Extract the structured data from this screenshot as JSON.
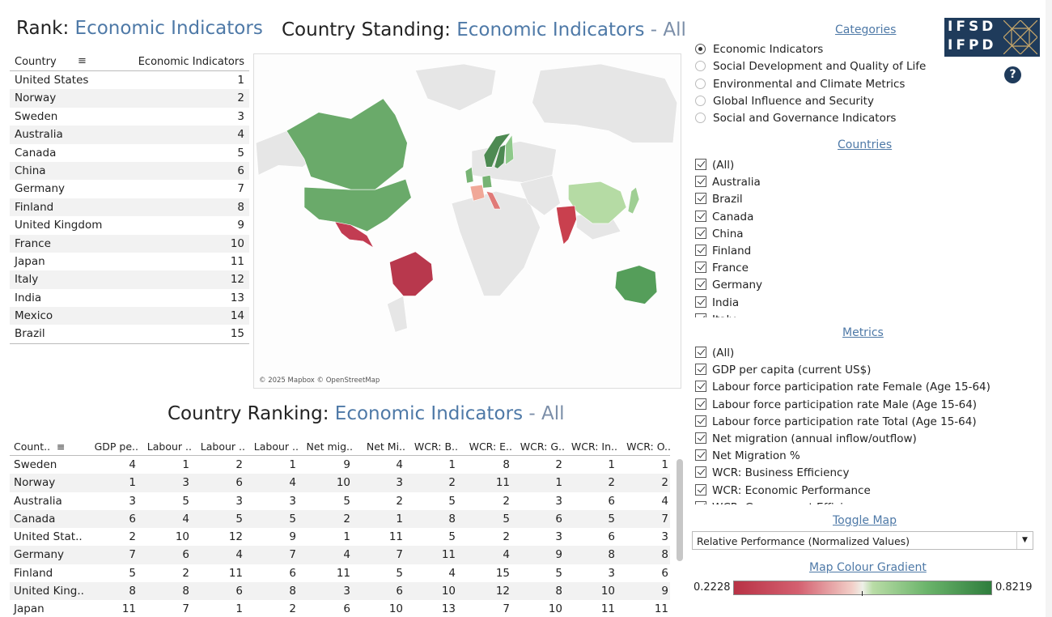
{
  "rank": {
    "title_prefix": "Rank: ",
    "title_category": "Economic Indicators",
    "col_country": "Country",
    "col_value": "Economic Indicators",
    "rows": [
      {
        "country": "United States",
        "rank": "1"
      },
      {
        "country": "Norway",
        "rank": "2"
      },
      {
        "country": "Sweden",
        "rank": "3"
      },
      {
        "country": "Australia",
        "rank": "4"
      },
      {
        "country": "Canada",
        "rank": "5"
      },
      {
        "country": "China",
        "rank": "6"
      },
      {
        "country": "Germany",
        "rank": "7"
      },
      {
        "country": "Finland",
        "rank": "8"
      },
      {
        "country": "United Kingdom",
        "rank": "9"
      },
      {
        "country": "France",
        "rank": "10"
      },
      {
        "country": "Japan",
        "rank": "11"
      },
      {
        "country": "Italy",
        "rank": "12"
      },
      {
        "country": "India",
        "rank": "13"
      },
      {
        "country": "Mexico",
        "rank": "14"
      },
      {
        "country": "Brazil",
        "rank": "15"
      }
    ]
  },
  "standing": {
    "title_prefix": "Country Standing: ",
    "title_category": "Economic Indicators",
    "title_suffix": " - All",
    "map_credit": "© 2025 Mapbox © OpenStreetMap",
    "land_color": "#e6e6e6",
    "country_colors": {
      "Canada": "#6aaa6a",
      "United States": "#6aaa6a",
      "Mexico": "#c23c52",
      "Brazil": "#b8384d",
      "Norway": "#4d8a52",
      "Sweden": "#4d8a52",
      "Finland": "#8ec98a",
      "United Kingdom": "#77b374",
      "France": "#f0a898",
      "Germany": "#77b374",
      "Italy": "#e07a78",
      "India": "#c9404e",
      "China": "#b5dba4",
      "Japan": "#9fcf94",
      "Australia": "#559e5a"
    }
  },
  "ranking": {
    "title_prefix": "Country Ranking: ",
    "title_category": "Economic Indicators",
    "title_suffix": " - All",
    "columns": [
      "Count..",
      "GDP pe..",
      "Labour ..",
      "Labour ..",
      "Labour ..",
      "Net mig..",
      "Net Mi..",
      "WCR: B..",
      "WCR: E..",
      "WCR: G..",
      "WCR: In..",
      "WCR: O.."
    ],
    "rows": [
      {
        "name": "Sweden",
        "values": [
          "4",
          "1",
          "2",
          "1",
          "9",
          "4",
          "1",
          "8",
          "2",
          "1",
          "1"
        ]
      },
      {
        "name": "Norway",
        "values": [
          "1",
          "3",
          "6",
          "4",
          "10",
          "3",
          "2",
          "11",
          "1",
          "2",
          "2"
        ]
      },
      {
        "name": "Australia",
        "values": [
          "3",
          "5",
          "3",
          "3",
          "5",
          "2",
          "5",
          "2",
          "3",
          "6",
          "4"
        ]
      },
      {
        "name": "Canada",
        "values": [
          "6",
          "4",
          "5",
          "5",
          "2",
          "1",
          "8",
          "5",
          "6",
          "5",
          "7"
        ]
      },
      {
        "name": "United Stat..",
        "values": [
          "2",
          "10",
          "12",
          "9",
          "1",
          "11",
          "5",
          "2",
          "3",
          "6",
          "3"
        ]
      },
      {
        "name": "Germany",
        "values": [
          "7",
          "6",
          "4",
          "7",
          "4",
          "7",
          "11",
          "4",
          "9",
          "8",
          "8"
        ]
      },
      {
        "name": "Finland",
        "values": [
          "5",
          "2",
          "11",
          "6",
          "11",
          "5",
          "4",
          "15",
          "5",
          "3",
          "6"
        ]
      },
      {
        "name": "United King..",
        "values": [
          "8",
          "8",
          "6",
          "8",
          "3",
          "6",
          "10",
          "12",
          "8",
          "10",
          "9"
        ]
      },
      {
        "name": "Japan",
        "values": [
          "11",
          "7",
          "1",
          "2",
          "6",
          "10",
          "13",
          "7",
          "10",
          "11",
          "11"
        ]
      }
    ]
  },
  "panel": {
    "categories_title": "Categories",
    "categories": [
      {
        "label": "Economic Indicators",
        "selected": true
      },
      {
        "label": "Social Development and Quality of Life",
        "selected": false
      },
      {
        "label": "Environmental and Climate Metrics",
        "selected": false
      },
      {
        "label": "Global Influence and Security",
        "selected": false
      },
      {
        "label": "Social and Governance Indicators",
        "selected": false
      }
    ],
    "countries_title": "Countries",
    "countries": [
      "(All)",
      "Australia",
      "Brazil",
      "Canada",
      "China",
      "Finland",
      "France",
      "Germany",
      "India",
      "Italy"
    ],
    "metrics_title": "Metrics",
    "metrics": [
      "(All)",
      "GDP per capita (current US$)",
      "Labour force participation rate Female (Age 15-64)",
      "Labour force participation rate Male (Age 15-64)",
      "Labour force participation rate Total (Age 15-64)",
      "Net migration (annual inflow/outflow)",
      "Net Migration %",
      "WCR: Business Efficiency",
      "WCR: Economic Performance",
      "WCR: Government Efficiency"
    ],
    "toggle_title": "Toggle Map",
    "toggle_value": "Relative Performance (Normalized Values)",
    "gradient_title": "Map Colour Gradient",
    "gradient_min": "0.2228",
    "gradient_max": "0.8219"
  },
  "logo": {
    "line1": "IFSD",
    "line2": "IFPD"
  },
  "help": "?"
}
